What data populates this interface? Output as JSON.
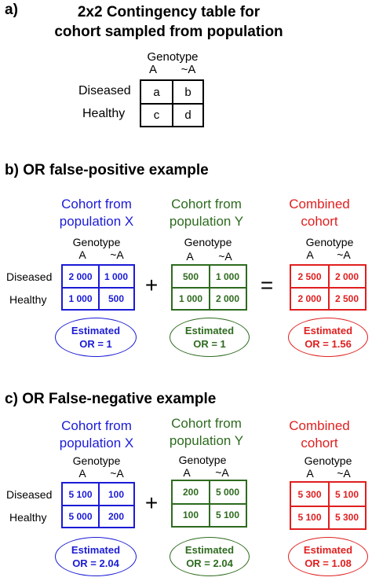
{
  "section_a": {
    "letter": "a)",
    "title_line1": "2x2 Contingency table for",
    "title_line2": "cohort sampled from population",
    "genotype": "Genotype",
    "col_A": "A",
    "col_notA": "~A",
    "row_diseased": "Diseased",
    "row_healthy": "Healthy",
    "cells": [
      "a",
      "b",
      "c",
      "d"
    ]
  },
  "section_b": {
    "letter": "b)",
    "title": "OR false-positive example",
    "row_diseased": "Diseased",
    "row_healthy": "Healthy",
    "plus": "+",
    "equals": "=",
    "cohorts": [
      {
        "title1": "Cohort from",
        "title2": "population X",
        "genotype": "Genotype",
        "colA": "A",
        "colB": "~A",
        "cells": [
          "2 000",
          "1 000",
          "1 000",
          "500"
        ],
        "est1": "Estimated",
        "est2": "OR = 1",
        "color": "#1b1bd6"
      },
      {
        "title1": "Cohort from",
        "title2": "population Y",
        "genotype": "Genotype",
        "colA": "A",
        "colB": "~A",
        "cells": [
          "500",
          "1 000",
          "1 000",
          "2 000"
        ],
        "est1": "Estimated",
        "est2": "OR = 1",
        "color": "#2e6b1f"
      },
      {
        "title1": "Combined",
        "title2": "cohort",
        "genotype": "Genotype",
        "colA": "A",
        "colB": "~A",
        "cells": [
          "2 500",
          "2 000",
          "2 000",
          "2 500"
        ],
        "est1": "Estimated",
        "est2": "OR = 1.56",
        "color": "#e01f1f"
      }
    ]
  },
  "section_c": {
    "letter": "c)",
    "title": "OR False-negative example",
    "row_diseased": "Diseased",
    "row_healthy": "Healthy",
    "plus": "+",
    "cohorts": [
      {
        "title1": "Cohort from",
        "title2": "population X",
        "genotype": "Genotype",
        "colA": "A",
        "colB": "~A",
        "cells": [
          "5 100",
          "100",
          "5 000",
          "200"
        ],
        "est1": "Estimated",
        "est2": "OR = 2.04",
        "color": "#1b1bd6"
      },
      {
        "title1": "Cohort from",
        "title2": "population Y",
        "genotype": "Genotype",
        "colA": "A",
        "colB": "~A",
        "cells": [
          "200",
          "5 000",
          "100",
          "5 100"
        ],
        "est1": "Estimated",
        "est2": "OR = 2.04",
        "color": "#2e6b1f"
      },
      {
        "title1": "Combined",
        "title2": "cohort",
        "genotype": "Genotype",
        "colA": "A",
        "colB": "~A",
        "cells": [
          "5 300",
          "5 100",
          "5 100",
          "5 300"
        ],
        "est1": "Estimated",
        "est2": "OR = 1.08",
        "color": "#e01f1f"
      }
    ]
  }
}
